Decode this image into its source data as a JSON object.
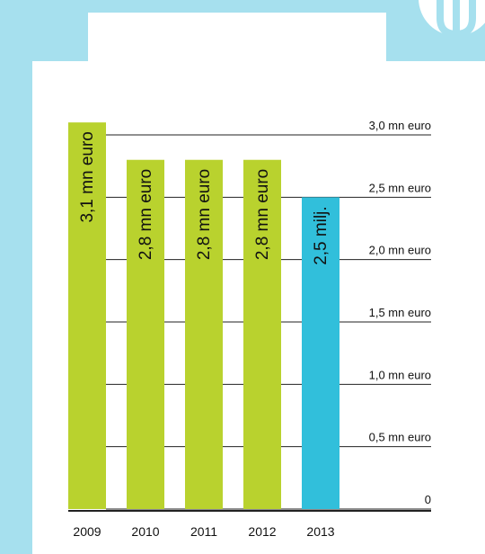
{
  "colors": {
    "background": "#a6e0ee",
    "panel": "#ffffff",
    "bar_default": "#b9d22e",
    "bar_highlight": "#31bfdb",
    "gridline": "#222222"
  },
  "chart_data": {
    "type": "bar",
    "orientation": "vertical",
    "title": "",
    "xlabel": "",
    "ylabel": "",
    "categories": [
      "2009",
      "2010",
      "2011",
      "2012",
      "2013"
    ],
    "values": [
      3.1,
      2.8,
      2.8,
      2.8,
      2.5
    ],
    "value_unit": "mn euro",
    "bar_labels": [
      "3,1 mn euro",
      "2,8 mn euro",
      "2,8 mn euro",
      "2,8 mn euro",
      "2,5 milj."
    ],
    "highlight_index": 4,
    "ylim": [
      0,
      3.0
    ],
    "yticks": [
      0,
      0.5,
      1.0,
      1.5,
      2.0,
      2.5,
      3.0
    ],
    "ytick_labels": [
      "0",
      "0,5 mn euro",
      "1,0 mn euro",
      "1,5 mn euro",
      "2,0 mn euro",
      "2,5 mn euro",
      "3,0 mn euro"
    ],
    "grid": true,
    "legend": "none"
  }
}
